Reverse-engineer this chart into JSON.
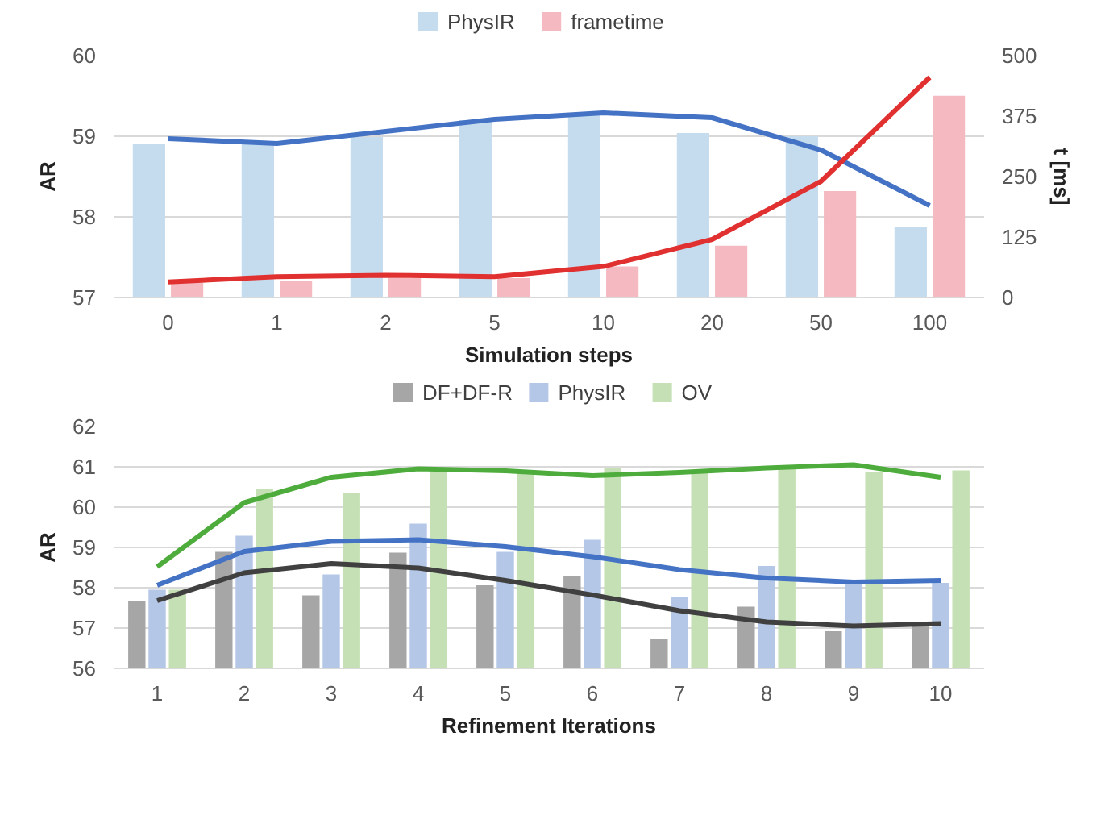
{
  "chart_data": [
    {
      "type": "bar",
      "xlabel": "Simulation steps",
      "ylabel": "AR",
      "y2label": "t [ms]",
      "categories": [
        "0",
        "1",
        "2",
        "5",
        "10",
        "20",
        "50",
        "100"
      ],
      "ylim": [
        57,
        60
      ],
      "yticks": [
        57,
        58,
        59,
        60
      ],
      "y2lim": [
        0,
        500
      ],
      "y2ticks": [
        0,
        125,
        250,
        375,
        500
      ],
      "grid": "y",
      "legend": "top",
      "series": [
        {
          "name": "PhysIR",
          "color": "#c5dcef",
          "values": [
            58.91,
            58.93,
            58.99,
            59.2,
            59.27,
            59.04,
            59.0,
            57.88
          ]
        },
        {
          "name": "frametime",
          "color": "#f4b9c1",
          "axis": "y2",
          "values": [
            30,
            34,
            40,
            40,
            64,
            107,
            220,
            417
          ]
        },
        {
          "type": "line",
          "color": "#4472c4",
          "x": [
            "0",
            "1",
            "2",
            "5",
            "10",
            "20",
            "50",
            "100"
          ],
          "values": [
            58.97,
            58.91,
            59.06,
            59.21,
            59.29,
            59.23,
            58.83,
            58.14
          ]
        },
        {
          "type": "line",
          "color": "#e03030",
          "axis": "y2",
          "x": [
            "0",
            "1",
            "2",
            "5",
            "10",
            "20",
            "50",
            "100"
          ],
          "values": [
            32,
            43,
            46,
            43,
            64,
            120,
            240,
            455
          ]
        }
      ]
    },
    {
      "type": "bar",
      "xlabel": "Refinement Iterations",
      "ylabel": "AR",
      "categories": [
        "1",
        "2",
        "3",
        "4",
        "5",
        "6",
        "7",
        "8",
        "9",
        "10"
      ],
      "ylim": [
        56,
        62
      ],
      "yticks": [
        56,
        57,
        58,
        59,
        60,
        61,
        62
      ],
      "grid": "y",
      "legend": "top",
      "series": [
        {
          "name": "DF+DF-R",
          "color": "#a6a6a6",
          "values": [
            57.66,
            58.89,
            57.81,
            58.87,
            58.06,
            58.29,
            56.73,
            57.53,
            56.92,
            57.15
          ]
        },
        {
          "name": "PhysIR",
          "color": "#b4c7e7",
          "values": [
            57.95,
            59.29,
            58.33,
            59.59,
            58.89,
            59.19,
            57.78,
            58.54,
            58.1,
            58.12
          ]
        },
        {
          "name": "OV",
          "color": "#c5e0b4",
          "values": [
            57.95,
            60.44,
            60.34,
            60.97,
            60.88,
            60.97,
            60.91,
            60.97,
            60.88,
            60.91
          ]
        },
        {
          "type": "line",
          "color": "#4eac3c",
          "x": [
            "1",
            "2",
            "3",
            "4",
            "5",
            "6",
            "7",
            "8",
            "9",
            "10"
          ],
          "values": [
            58.52,
            60.11,
            60.74,
            60.95,
            60.9,
            60.78,
            60.86,
            60.97,
            61.05,
            60.74
          ]
        },
        {
          "type": "line",
          "color": "#4472c4",
          "x": [
            "1",
            "2",
            "3",
            "4",
            "5",
            "6",
            "7",
            "8",
            "9",
            "10"
          ],
          "values": [
            58.06,
            58.9,
            59.15,
            59.19,
            59.02,
            58.77,
            58.45,
            58.24,
            58.14,
            58.18
          ]
        },
        {
          "type": "line",
          "color": "#404040",
          "x": [
            "1",
            "2",
            "3",
            "4",
            "5",
            "6",
            "7",
            "8",
            "9",
            "10"
          ],
          "values": [
            57.68,
            58.37,
            58.6,
            58.49,
            58.18,
            57.82,
            57.43,
            57.15,
            57.05,
            57.11
          ]
        }
      ]
    }
  ]
}
